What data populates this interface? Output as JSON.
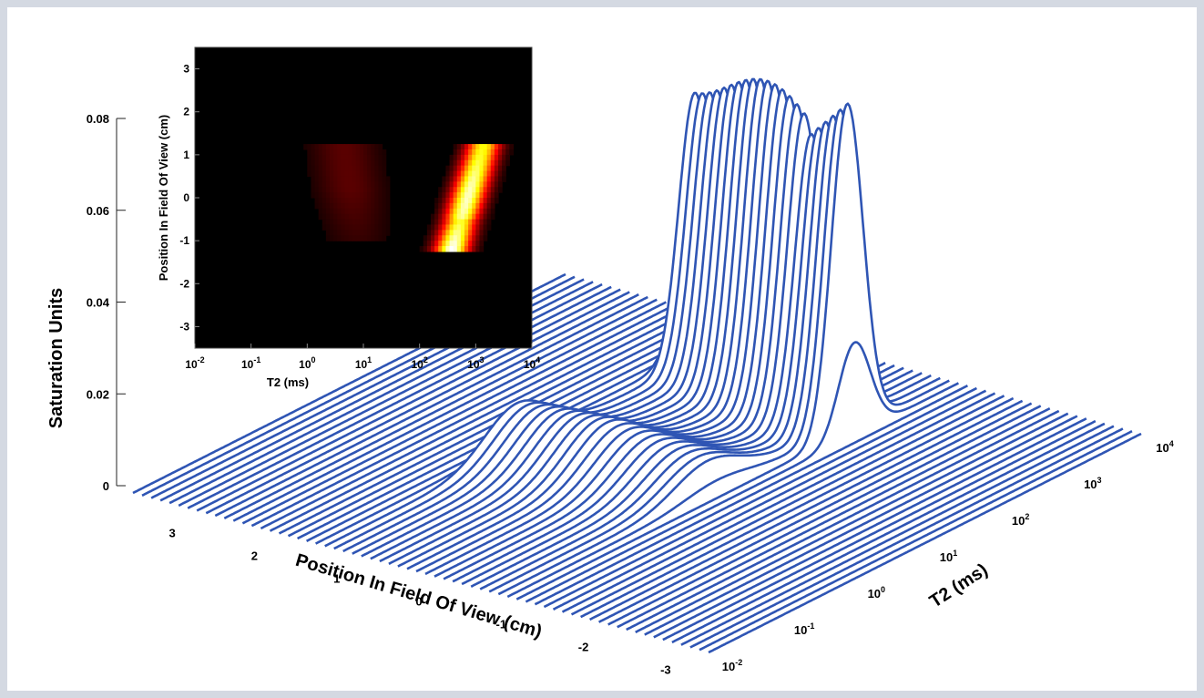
{
  "chart_data": [
    {
      "type": "heatmap",
      "title": "",
      "xlabel": "T2 (ms)",
      "ylabel": "Position In Field Of View (cm)",
      "x_scale": "log",
      "x_range_ms": [
        0.01,
        10000
      ],
      "y_range_cm": [
        -3.5,
        3.5
      ],
      "x_ticks": [
        "10^-2",
        "10^-1",
        "10^0",
        "10^1",
        "10^2",
        "10^3",
        "10^4"
      ],
      "y_ticks": [
        "3",
        "2",
        "1",
        "0",
        "-1",
        "-2",
        "-3"
      ],
      "colormap": "hot",
      "features": [
        {
          "component": "short T2",
          "T2_range_ms": [
            2,
            30
          ],
          "position_range_cm": [
            -1,
            1.2
          ],
          "intensity": "low"
        },
        {
          "component": "long T2",
          "T2_range_ms": [
            300,
            2000
          ],
          "position_range_cm": [
            -1.2,
            1.2
          ],
          "intensity": "high"
        }
      ]
    },
    {
      "type": "line",
      "style": "waterfall-3d",
      "title": "",
      "xlabel": "T2 (ms)",
      "ylabel": "Position In Field Of View (cm)",
      "zlabel": "Saturation Units",
      "x_scale": "log",
      "x_range_ms": [
        0.01,
        10000
      ],
      "y_range_cm": [
        -3.5,
        3.5
      ],
      "z_range": [
        0,
        0.08
      ],
      "x_ticks": [
        "10^-2",
        "10^-1",
        "10^0",
        "10^1",
        "10^2",
        "10^3",
        "10^4"
      ],
      "y_ticks": [
        "3",
        "2",
        "1",
        "0",
        "-1",
        "-2",
        "-3"
      ],
      "z_ticks": [
        "0",
        "0.02",
        "0.04",
        "0.06",
        "0.08"
      ],
      "line_color": "#2f55b4",
      "peaks": [
        {
          "component": "short T2",
          "T2_center_ms": 8,
          "position_range_cm": [
            -1,
            1.2
          ],
          "max_saturation": 0.01
        },
        {
          "component": "long T2",
          "T2_center_ms": 800,
          "position_range_cm": [
            -1.2,
            1.2
          ],
          "max_saturation": 0.075
        }
      ]
    }
  ]
}
